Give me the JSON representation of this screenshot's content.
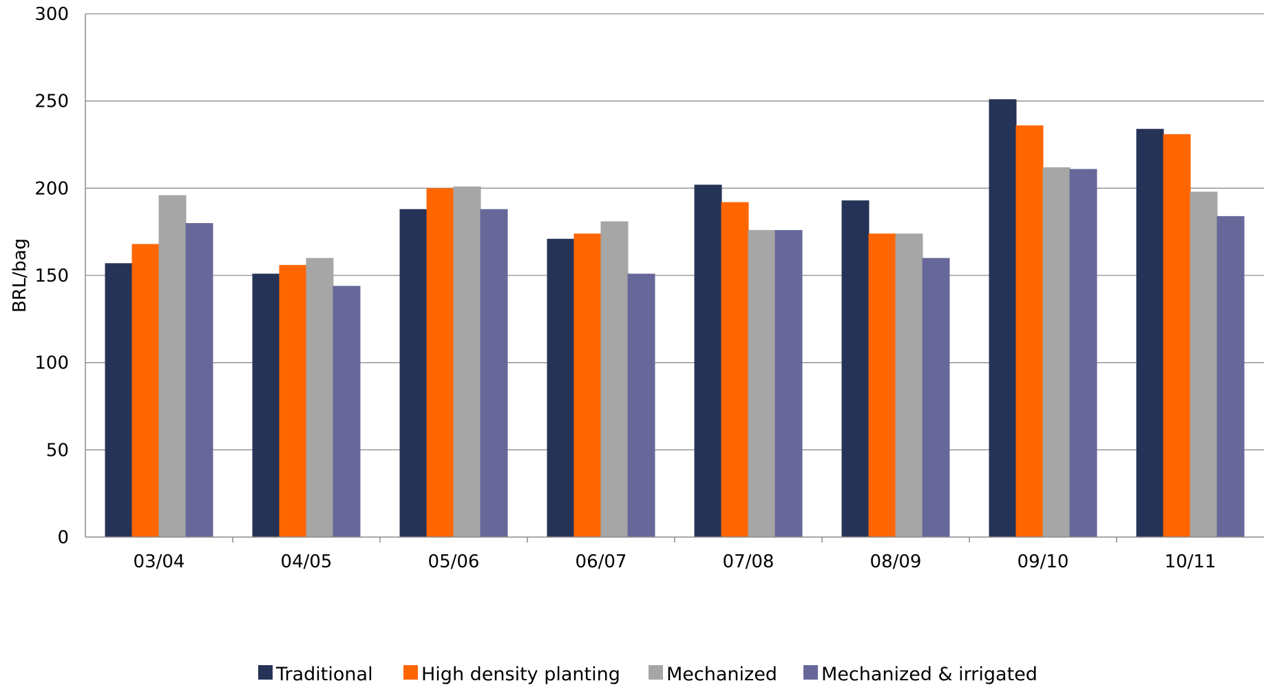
{
  "chart_data": {
    "type": "bar",
    "title": "",
    "xlabel": "",
    "ylabel": "BRL/bag",
    "ylim": [
      0,
      300
    ],
    "yticks": [
      0,
      50,
      100,
      150,
      200,
      250,
      300
    ],
    "grid": true,
    "legend_position": "bottom",
    "categories": [
      "03/04",
      "04/05",
      "05/06",
      "06/07",
      "07/08",
      "08/09",
      "09/10",
      "10/11"
    ],
    "series": [
      {
        "name": "Traditional",
        "color": "#253356",
        "values": [
          157,
          151,
          188,
          171,
          202,
          193,
          251,
          234
        ]
      },
      {
        "name": "High density planting",
        "color": "#ff6600",
        "values": [
          168,
          156,
          200,
          174,
          192,
          174,
          236,
          231
        ]
      },
      {
        "name": "Mechanized",
        "color": "#a6a6a6",
        "values": [
          196,
          160,
          201,
          181,
          176,
          174,
          212,
          198
        ]
      },
      {
        "name": "Mechanized & irrigated",
        "color": "#676899",
        "values": [
          180,
          144,
          188,
          151,
          176,
          160,
          211,
          184
        ]
      }
    ]
  }
}
